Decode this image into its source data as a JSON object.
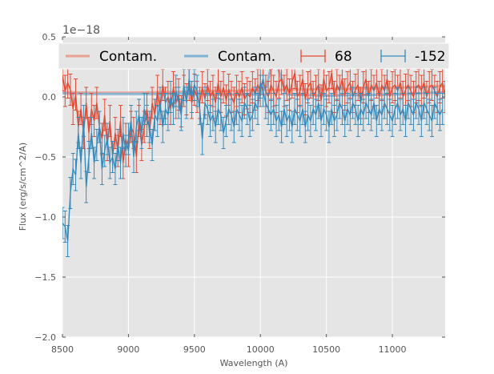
{
  "chart_data": {
    "type": "line",
    "title": "",
    "xlabel": "Wavelength (A)",
    "ylabel": "Flux (erg/s/cm^2/A)",
    "offset_text": "1e−18",
    "xlim": [
      8500,
      11400
    ],
    "ylim": [
      -2.0,
      0.5
    ],
    "x_ticks": [
      8500,
      9000,
      9500,
      10000,
      10500,
      11000
    ],
    "x_tick_labels": [
      "8500",
      "9000",
      "9500",
      "10000",
      "10500",
      "11000"
    ],
    "y_ticks": [
      0.5,
      0.0,
      -0.5,
      -1.0,
      -1.5,
      -2.0
    ],
    "y_tick_labels": [
      "0.5",
      "0.0",
      "−0.5",
      "−1.0",
      "−1.5",
      "−2.0"
    ],
    "grid": true,
    "legend": {
      "placement": "top",
      "entries": [
        {
          "label": "Contam.",
          "kind": "line",
          "color": "#E8A090"
        },
        {
          "label": "Contam.",
          "kind": "line",
          "color": "#7FB2D5"
        },
        {
          "label": "68",
          "kind": "errorbar",
          "color": "#E24A33"
        },
        {
          "label": "-152",
          "kind": "errorbar",
          "color": "#348ABD"
        }
      ]
    },
    "series": [
      {
        "name": "68",
        "kind": "errorbar",
        "color": "#E24A33",
        "x_start": 8500,
        "x_step": 20,
        "values": [
          0.18,
          0.05,
          0.12,
          0.06,
          -0.1,
          0.02,
          -0.25,
          -0.1,
          -0.3,
          -0.05,
          -0.3,
          -0.1,
          -0.2,
          -0.05,
          -0.25,
          -0.35,
          -0.15,
          -0.4,
          -0.2,
          -0.5,
          -0.3,
          -0.45,
          -0.2,
          -0.55,
          -0.35,
          -0.45,
          -0.25,
          -0.3,
          -0.5,
          -0.2,
          -0.4,
          -0.25,
          -0.1,
          -0.3,
          -0.05,
          -0.15,
          0.05,
          -0.1,
          0.1,
          -0.05,
          0.0,
          -0.1,
          0.08,
          -0.05,
          0.02,
          -0.12,
          0.05,
          -0.02,
          0.1,
          -0.05,
          0.06,
          0.0,
          -0.05,
          0.08,
          -0.02,
          0.1,
          0.0,
          0.05,
          -0.05,
          0.12,
          0.0,
          0.08,
          -0.03,
          0.06,
          0.0,
          -0.05,
          0.05,
          0.0,
          0.08,
          -0.02,
          0.03,
          0.0,
          0.08,
          0.02,
          0.1,
          0.05,
          0.15,
          0.05,
          0.0,
          0.1,
          0.05,
          0.0,
          0.12,
          0.15,
          0.05,
          0.1,
          0.02,
          0.12,
          0.2,
          0.0,
          0.05,
          0.15,
          -0.02,
          0.08,
          0.12,
          0.0,
          0.05,
          0.1,
          -0.03,
          0.15,
          0.05,
          0.08,
          0.2,
          0.0,
          0.1,
          0.05,
          0.15,
          0.02,
          0.08,
          0.12,
          0.0,
          0.06,
          0.1,
          -0.05,
          0.08,
          0.15,
          0.0,
          0.1,
          0.05,
          0.12,
          0.0,
          0.1,
          0.05,
          0.15,
          0.0,
          0.08,
          0.1,
          0.05,
          0.12,
          0.0,
          0.06,
          0.1,
          0.05,
          0.0,
          0.08,
          0.1,
          0.05,
          0.12,
          0.0,
          0.08,
          0.1,
          0.05,
          0.0,
          0.08,
          0.12,
          0.0
        ],
        "errors": 0.13
      },
      {
        "name": "-152",
        "kind": "errorbar",
        "color": "#348ABD",
        "x_start": 8500,
        "x_step": 20,
        "values": [
          -1.05,
          -1.08,
          -1.2,
          -0.8,
          -0.6,
          -0.65,
          -0.3,
          -0.55,
          -0.2,
          -0.75,
          -0.5,
          -0.3,
          -0.55,
          -0.4,
          -0.25,
          -0.6,
          -0.45,
          -0.35,
          -0.55,
          -0.5,
          -0.6,
          -0.4,
          -0.55,
          -0.3,
          -0.45,
          -0.35,
          -0.2,
          -0.5,
          -0.25,
          -0.15,
          -0.3,
          -0.1,
          -0.2,
          -0.25,
          -0.4,
          -0.15,
          -0.2,
          -0.05,
          -0.25,
          -0.1,
          -0.15,
          0.0,
          -0.1,
          0.05,
          -0.05,
          -0.15,
          0.1,
          -0.05,
          0.15,
          0.0,
          0.1,
          0.05,
          -0.1,
          -0.35,
          -0.05,
          -0.1,
          -0.2,
          -0.15,
          -0.25,
          -0.1,
          -0.15,
          -0.3,
          -0.2,
          -0.1,
          -0.15,
          -0.25,
          -0.1,
          -0.15,
          -0.2,
          -0.05,
          -0.1,
          -0.2,
          -0.15,
          -0.05,
          -0.1,
          0.12,
          0.05,
          -0.05,
          -0.1,
          -0.15,
          -0.1,
          -0.2,
          -0.15,
          -0.25,
          -0.1,
          -0.2,
          -0.15,
          -0.25,
          -0.1,
          -0.15,
          -0.2,
          -0.1,
          -0.25,
          -0.15,
          -0.2,
          -0.1,
          -0.15,
          -0.05,
          -0.2,
          -0.1,
          -0.15,
          -0.25,
          -0.1,
          -0.2,
          -0.15,
          -0.05,
          -0.1,
          -0.2,
          -0.1,
          -0.15,
          -0.05,
          -0.1,
          -0.2,
          -0.1,
          -0.15,
          -0.05,
          -0.1,
          -0.15,
          -0.05,
          -0.2,
          -0.1,
          -0.15,
          -0.05,
          -0.1,
          -0.15,
          -0.2,
          -0.1,
          -0.05,
          -0.15,
          -0.1,
          -0.2,
          -0.05,
          -0.1,
          -0.15,
          -0.05,
          -0.1,
          -0.2,
          -0.05,
          -0.1,
          -0.15,
          -0.2,
          -0.05,
          -0.1,
          -0.15,
          -0.1
        ],
        "errors": 0.13
      },
      {
        "name": "Contam.",
        "kind": "line",
        "color": "#E8A090",
        "x": [
          8500,
          8700,
          9000,
          9300,
          9600,
          10000,
          10500,
          11000,
          11400
        ],
        "values": [
          0.04,
          0.035,
          0.035,
          0.04,
          0.05,
          0.055,
          0.065,
          0.075,
          0.09
        ]
      },
      {
        "name": "Contam.",
        "kind": "line",
        "color": "#7FB2D5",
        "x": [
          8500,
          8700,
          9000,
          9300,
          9500,
          9600,
          9800,
          10000,
          10050,
          10100,
          10200,
          10500,
          11000,
          11400
        ],
        "values": [
          0.03,
          0.025,
          0.025,
          0.025,
          0.03,
          0.02,
          0.02,
          0.02,
          0.1,
          0.35,
          0.02,
          0.01,
          0.02,
          0.04
        ]
      }
    ]
  }
}
